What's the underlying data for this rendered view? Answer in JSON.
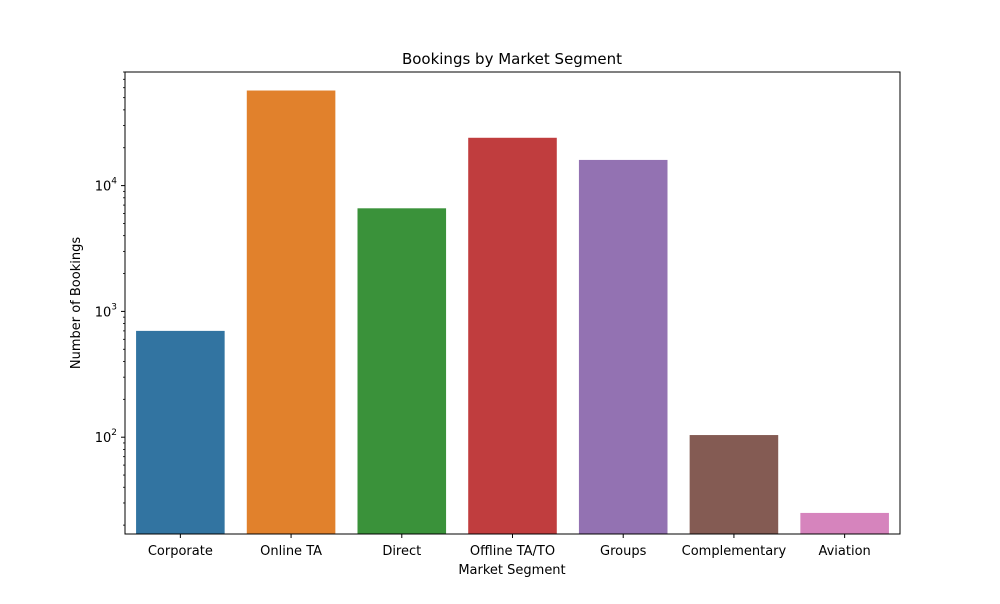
{
  "chart_data": {
    "type": "bar",
    "title": "Bookings by Market Segment",
    "xlabel": "Market Segment",
    "ylabel": "Number of Bookings",
    "yscale": "log",
    "ylim": [
      17,
      80000
    ],
    "grid": false,
    "legend": "none",
    "categories": [
      "Corporate",
      "Online TA",
      "Direct",
      "Offline TA/TO",
      "Groups",
      "Complementary",
      "Aviation"
    ],
    "values": [
      700,
      57000,
      6600,
      24000,
      16000,
      104,
      25
    ],
    "colors": [
      "#3274a1",
      "#e1812c",
      "#3a923a",
      "#c03d3e",
      "#9372b2",
      "#845b53",
      "#d684bd"
    ],
    "yticks": [
      {
        "value": 100,
        "mantissa": "10",
        "exponent": "2"
      },
      {
        "value": 1000,
        "mantissa": "10",
        "exponent": "3"
      },
      {
        "value": 10000,
        "mantissa": "10",
        "exponent": "4"
      }
    ]
  }
}
